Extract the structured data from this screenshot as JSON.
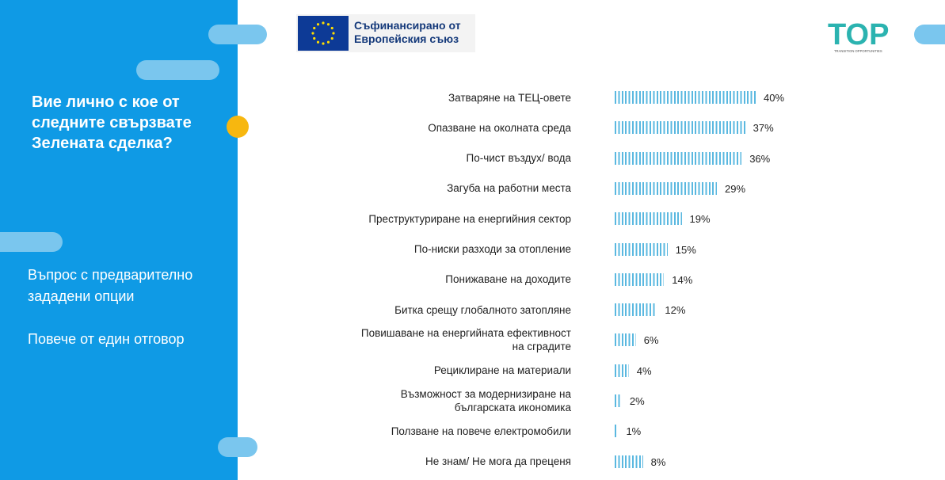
{
  "sidebar": {
    "question": "Вие лично с кое от следните свързвате Зелената сделка?",
    "note1": "Въпрос с предварително зададени опции",
    "note2": "Повече от един отговор"
  },
  "header": {
    "eu_line1": "Съфинансирано от",
    "eu_line2": "Европейския съюз",
    "logo_text": "TOP",
    "logo_subtitle": "TRANSITION OPPORTUNITIES"
  },
  "colors": {
    "sidebar": "#0f9ae5",
    "pill": "#7ac6ee",
    "accent_dot": "#f7b70f",
    "bar_stripe": "#5ab8e0",
    "eu_blue": "#14397a"
  },
  "chart_data": {
    "type": "bar",
    "orientation": "horizontal",
    "categories": [
      "Затваряне на ТЕЦ-овете",
      "Опазване на околната среда",
      "По-чист въздух/ вода",
      "Загуба на работни места",
      "Преструктуриране на енергийния сектор",
      "По-ниски разходи за отопление",
      "Понижаване на доходите",
      "Битка срещу глобалното затопляне",
      "Повишаване на енергийната ефективност на сградите",
      "Рециклиране на материали",
      "Възможност за модернизиране на българската икономика",
      "Ползване на повече електромобили",
      "Не знам/ Не мога да преценя"
    ],
    "label_lines": [
      [
        "Затваряне на ТЕЦ-овете"
      ],
      [
        "Опазване на околната среда"
      ],
      [
        "По-чист въздух/ вода"
      ],
      [
        "Загуба на работни места"
      ],
      [
        "Преструктуриране на енергийния сектор"
      ],
      [
        "По-ниски разходи за отопление"
      ],
      [
        "Понижаване на доходите"
      ],
      [
        "Битка срещу глобалното затопляне"
      ],
      [
        "Повишаване на енергийната ефективност",
        "на сградите"
      ],
      [
        "Рециклиране на материали"
      ],
      [
        "Възможност за модернизиране на",
        "българската икономика"
      ],
      [
        "Ползване на повече електромобили"
      ],
      [
        "Не знам/ Не мога да преценя"
      ]
    ],
    "values": [
      40,
      37,
      36,
      29,
      19,
      15,
      14,
      12,
      6,
      4,
      2,
      1,
      8
    ],
    "value_labels": [
      "40%",
      "37%",
      "36%",
      "29%",
      "19%",
      "15%",
      "14%",
      "12%",
      "6%",
      "4%",
      "2%",
      "1%",
      "8%"
    ],
    "unit": "%",
    "xlim": [
      0,
      40
    ]
  }
}
